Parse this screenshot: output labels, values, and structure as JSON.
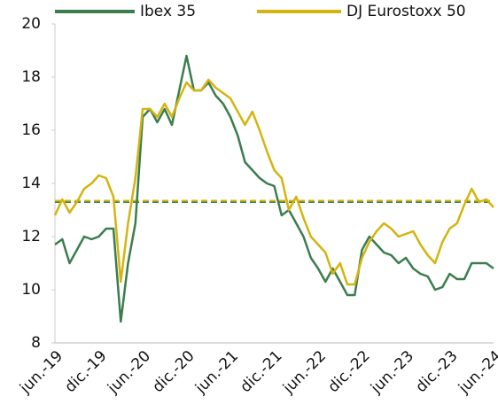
{
  "chart_data": {
    "type": "line",
    "categories": [
      "jun.-19",
      null,
      null,
      null,
      null,
      null,
      "dic.-19",
      null,
      null,
      null,
      null,
      null,
      "jun.-20",
      null,
      null,
      null,
      null,
      null,
      "dic.-20",
      null,
      null,
      null,
      null,
      null,
      "jun.-21",
      null,
      null,
      null,
      null,
      null,
      "dic.-21",
      null,
      null,
      null,
      null,
      null,
      "jun.-22",
      null,
      null,
      null,
      null,
      null,
      "dic.-22",
      null,
      null,
      null,
      null,
      null,
      "jun.-23",
      null,
      null,
      null,
      null,
      null,
      "dic.-23",
      null,
      null,
      null,
      null,
      null,
      "jun.-24"
    ],
    "series": [
      {
        "name": "Ibex 35",
        "color": "#3b7d4f",
        "values": [
          11.7,
          11.9,
          11.0,
          11.5,
          12.0,
          11.9,
          12.0,
          12.3,
          12.3,
          8.8,
          11.0,
          12.5,
          16.5,
          16.8,
          16.3,
          16.8,
          16.2,
          17.5,
          18.8,
          17.5,
          17.5,
          17.8,
          17.3,
          17.0,
          16.5,
          15.8,
          14.8,
          14.5,
          14.2,
          14.0,
          13.9,
          12.8,
          13.0,
          12.5,
          12.0,
          11.2,
          10.8,
          10.3,
          10.8,
          10.3,
          9.8,
          9.8,
          11.5,
          12.0,
          11.7,
          11.4,
          11.3,
          11.0,
          11.2,
          10.8,
          10.6,
          10.5,
          10.0,
          10.1,
          10.6,
          10.4,
          10.4,
          11.0,
          11.0,
          11.0,
          10.8
        ]
      },
      {
        "name": "DJ Eurostoxx 50",
        "color": "#d4b40f",
        "values": [
          12.8,
          13.4,
          12.9,
          13.3,
          13.8,
          14.0,
          14.3,
          14.2,
          13.5,
          10.3,
          12.5,
          14.2,
          16.8,
          16.8,
          16.5,
          17.0,
          16.5,
          17.2,
          17.8,
          17.5,
          17.5,
          17.9,
          17.6,
          17.4,
          17.2,
          16.7,
          16.2,
          16.7,
          16.0,
          15.2,
          14.5,
          14.2,
          13.0,
          13.5,
          12.7,
          12.0,
          11.7,
          11.4,
          10.6,
          11.0,
          10.2,
          10.2,
          11.2,
          11.8,
          12.2,
          12.5,
          12.3,
          12.0,
          12.1,
          12.2,
          11.7,
          11.3,
          11.0,
          11.8,
          12.3,
          12.5,
          13.2,
          13.8,
          13.3,
          13.4,
          13.1
        ]
      }
    ],
    "reference_lines": [
      {
        "value": 13.3,
        "color": "#3b7d4f"
      },
      {
        "value": 13.35,
        "color": "#d4b40f"
      }
    ],
    "ylim": [
      8,
      20
    ],
    "yticks": [
      8,
      10,
      12,
      14,
      16,
      18,
      20
    ],
    "grid": false
  }
}
